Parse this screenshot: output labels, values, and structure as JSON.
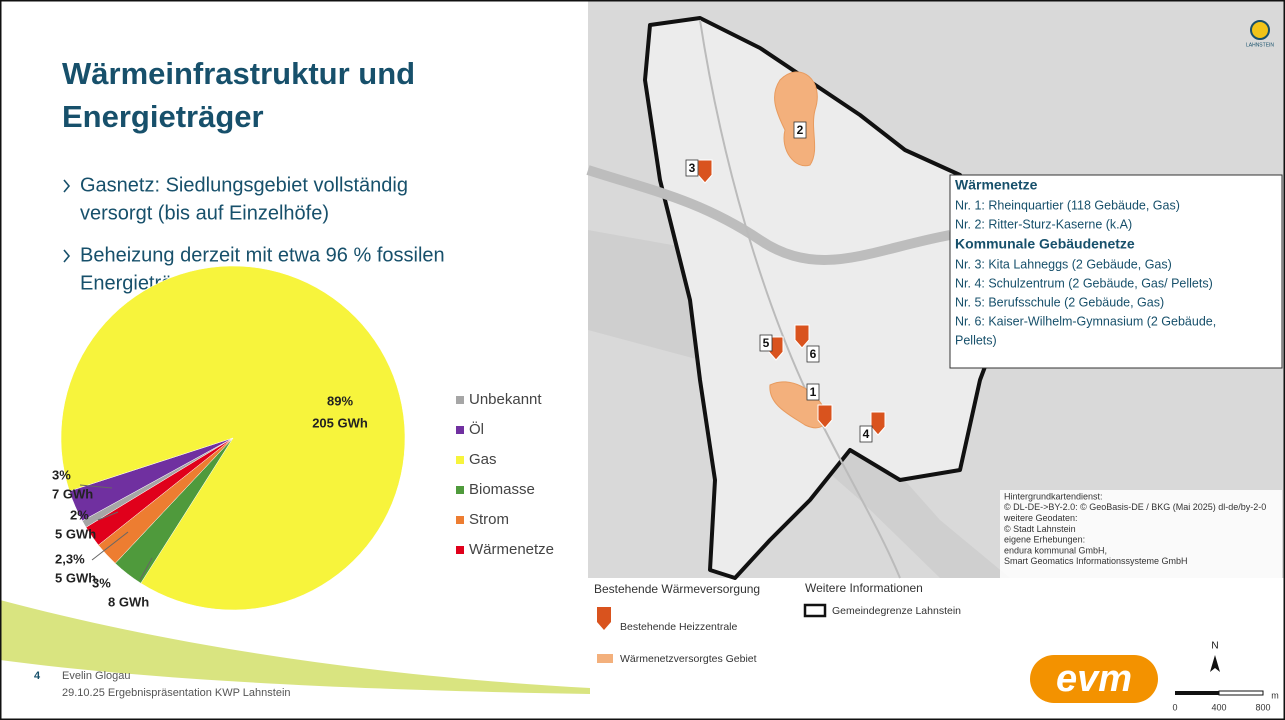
{
  "header": {
    "title_lines": [
      "Wärmeinfrastruktur und",
      "Energieträger"
    ]
  },
  "bullets": [
    [
      "Gasnetz: Siedlungsgebiet vollständig",
      "versorgt (bis auf Einzelhöfe)"
    ],
    [
      "Beheizung derzeit mit etwa 96 % fossilen",
      "Energieträgern"
    ]
  ],
  "chart_data": {
    "type": "pie",
    "categories": [
      "Unbekannt",
      "Öl",
      "Gas",
      "Biomasse",
      "Strom",
      "Wärmenetze"
    ],
    "values": [
      0.7,
      3,
      89,
      3,
      2.3,
      2
    ],
    "value_labels": [
      null,
      "3%",
      "89%",
      "3%",
      "2,3%",
      "2%"
    ],
    "energy_labels": [
      null,
      "7 GWh",
      "205 GWh",
      "8 GWh",
      "5 GWh",
      "5 GWh"
    ],
    "colors": [
      "#a6a6a6",
      "#7030a0",
      "#f7f43c",
      "#4f9a3c",
      "#ed7d31",
      "#e0001b"
    ],
    "legend": "right"
  },
  "footer": {
    "page": "4",
    "author": "Evelin Glogau",
    "event": "29.10.25 Ergebnispräsentation KWP Lahnstein"
  },
  "map": {
    "logo": "LAHNSTEIN",
    "info_box": [
      {
        "heading": "Wärmenetze",
        "items": [
          [
            "Nr. 1: Rheinquartier (118 Gebäude, Gas)"
          ],
          [
            "Nr. 2: Ritter-Sturz-Kaserne (k.A)"
          ]
        ]
      },
      {
        "heading": "Kommunale Gebäudenetze",
        "items": [
          [
            "Nr. 3: Kita Lahneggs (2 Gebäude, Gas)"
          ],
          [
            "Nr. 4: Schulzentrum (2 Gebäude, Gas/ Pellets)"
          ],
          [
            "Nr. 5: Berufsschule (2 Gebäude, Gas)"
          ],
          [
            "Nr. 6: Kaiser-Wilhelm-Gymnasium (2 Gebäude,",
            "Pellets)"
          ]
        ]
      }
    ],
    "site_labels": [
      "1",
      "2",
      "3",
      "4",
      "5",
      "6"
    ],
    "attribution": [
      "Hintergrundkartendienst:",
      "© DL-DE->BY-2.0: © GeoBasis-DE / BKG (Mai 2025) dl-de/by-2-0",
      "weitere Geodaten:",
      "© Stadt Lahnstein",
      "eigene Erhebungen:",
      "endura kommunal GmbH,",
      "Smart Geomatics Informationssysteme GmbH"
    ],
    "legend": {
      "group1": "Bestehende Wärmeversorgung",
      "heizzentrale": "Bestehende Heizzentrale",
      "gebiet": "Wärmenetzversorgtes Gebiet",
      "group2": "Weitere Informationen",
      "grenze": "Gemeindegrenze Lahnstein"
    },
    "brand": "evm",
    "north": "N",
    "scale": [
      "0",
      "400",
      "800",
      "m"
    ]
  }
}
